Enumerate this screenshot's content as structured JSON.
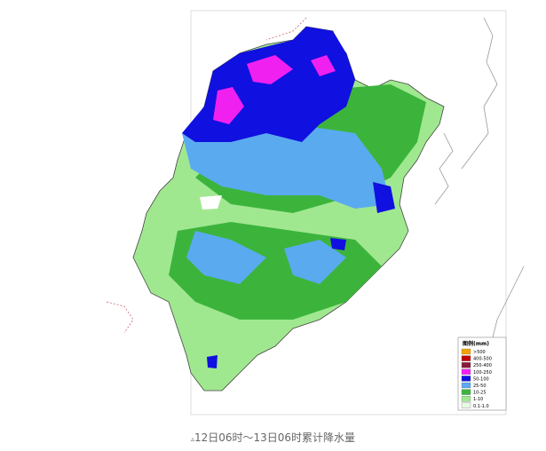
{
  "map": {
    "caption": "12日06时～13日06时累计降水量",
    "legend": {
      "title": "图例(mm)",
      "items": [
        {
          "label": ">500",
          "color": "#f5a000"
        },
        {
          "label": "400-500",
          "color": "#c00000"
        },
        {
          "label": "250-400",
          "color": "#8b1a3a"
        },
        {
          "label": "100-250",
          "color": "#f020f0"
        },
        {
          "label": "50-100",
          "color": "#1010e0"
        },
        {
          "label": "25-50",
          "color": "#5aaaf0"
        },
        {
          "label": "10-25",
          "color": "#3cb43c"
        },
        {
          "label": "1-10",
          "color": "#a0e890"
        },
        {
          "label": "0.1-1.0",
          "color": "#eaf8e4"
        }
      ]
    }
  }
}
